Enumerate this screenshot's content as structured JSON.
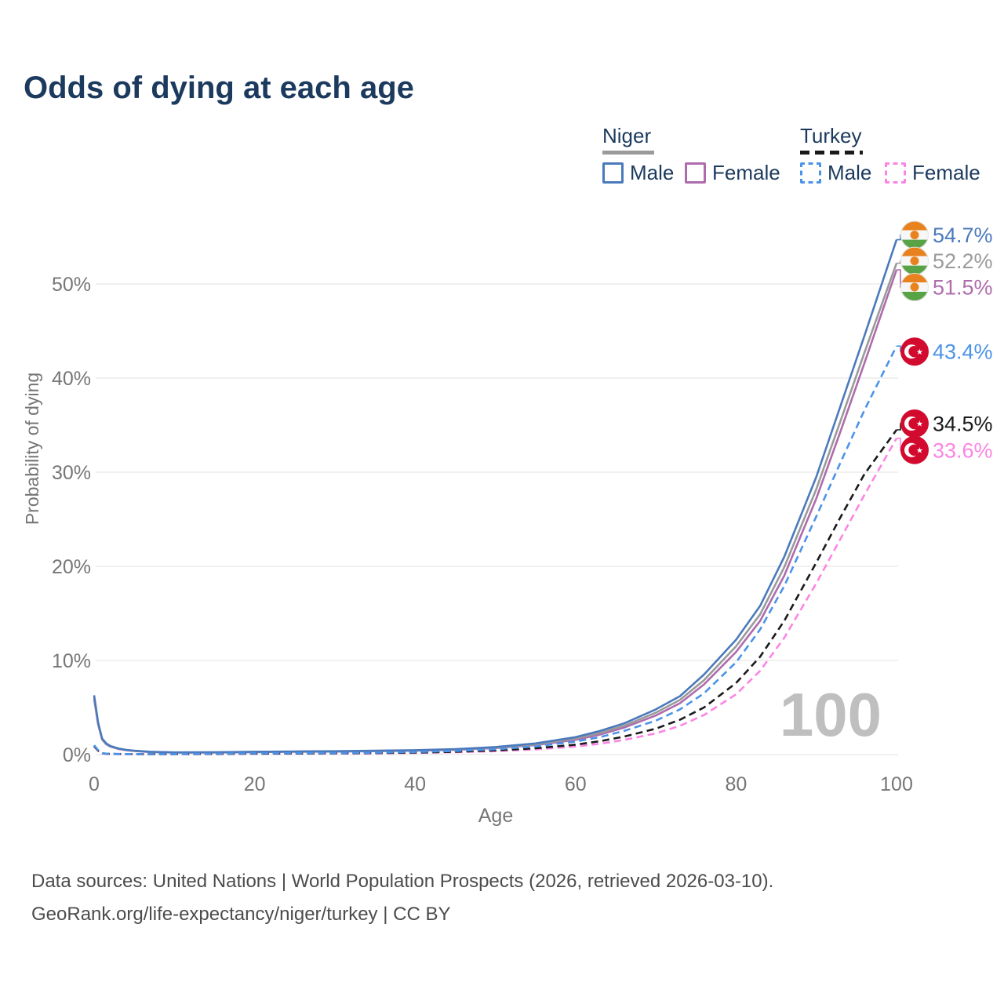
{
  "title": {
    "text": "Odds of dying at each age",
    "color": "#1c3a5e"
  },
  "legend": {
    "text_color": "#1c3a5e",
    "groups": [
      {
        "id": "niger",
        "label": "Niger",
        "swatch_color": "#9a9a9a",
        "swatch_style": "solid",
        "items": [
          {
            "id": "niger-male",
            "label": "Male",
            "color": "#4a7abc",
            "style": "solid"
          },
          {
            "id": "niger-female",
            "label": "Female",
            "color": "#af6cac",
            "style": "solid"
          }
        ]
      },
      {
        "id": "turkey",
        "label": "Turkey",
        "swatch_color": "#1a1a1a",
        "swatch_style": "dashed",
        "items": [
          {
            "id": "turkey-male",
            "label": "Male",
            "color": "#4b93e8",
            "style": "dashed"
          },
          {
            "id": "turkey-female",
            "label": "Female",
            "color": "#fc85e3",
            "style": "dashed"
          }
        ]
      }
    ]
  },
  "watermark": {
    "text": "100",
    "color": "#bfbfbf"
  },
  "footer": {
    "line1": "Data sources: United Nations | World Population Prospects (2026, retrieved 2026-03-10).",
    "line2": "GeoRank.org/life-expectancy/niger/turkey | CC BY",
    "color": "#4c4c4c"
  },
  "flags": {
    "niger": {
      "orange": "#e8821e",
      "white": "#f7f7f7",
      "green": "#57a345",
      "ring": "#e3e3e3"
    },
    "turkey": {
      "red": "#d20b2e",
      "white": "#ffffff"
    }
  },
  "chart_data": {
    "type": "line",
    "title": "Odds of dying at each age",
    "xlabel": "Age",
    "ylabel": "Probability of dying",
    "xlim": [
      0,
      100
    ],
    "ylim": [
      0,
      57
    ],
    "xticks": [
      0,
      20,
      40,
      60,
      80,
      100
    ],
    "yticks": [
      {
        "value": 0,
        "label": "0%"
      },
      {
        "value": 10,
        "label": "10%"
      },
      {
        "value": 20,
        "label": "20%"
      },
      {
        "value": 30,
        "label": "30%"
      },
      {
        "value": 40,
        "label": "40%"
      },
      {
        "value": 50,
        "label": "50%"
      }
    ],
    "grid": "horizontal",
    "legend_position": "top-right",
    "hover_age_indicator": "100",
    "ages": [
      0,
      0.5,
      1,
      1.5,
      2,
      3,
      4,
      5,
      7,
      10,
      15,
      20,
      25,
      30,
      35,
      40,
      45,
      50,
      55,
      60,
      63,
      66,
      70,
      73,
      76,
      80,
      83,
      86,
      90,
      93,
      96,
      100
    ],
    "series": [
      {
        "id": "niger-male",
        "name": "Niger — Male",
        "country": "Niger",
        "sex": "Male",
        "style": "solid",
        "color": "#4a7abc",
        "flag": "niger",
        "end_label": "54.7%",
        "end_value": 54.7,
        "values": [
          6.3,
          3.4,
          1.7,
          1.2,
          0.92,
          0.66,
          0.5,
          0.42,
          0.3,
          0.23,
          0.25,
          0.3,
          0.33,
          0.36,
          0.41,
          0.47,
          0.58,
          0.8,
          1.18,
          1.85,
          2.5,
          3.3,
          4.8,
          6.2,
          8.5,
          12.2,
          15.8,
          21.0,
          29.5,
          37.0,
          44.5,
          54.7
        ]
      },
      {
        "id": "niger-both",
        "name": "Niger — Both sexes",
        "country": "Niger",
        "sex": "Both",
        "style": "solid",
        "color": "#9a9a9a",
        "flag": "niger",
        "end_label": "52.2%",
        "end_value": 52.2,
        "values": [
          6.1,
          3.3,
          1.65,
          1.15,
          0.88,
          0.63,
          0.48,
          0.4,
          0.29,
          0.22,
          0.23,
          0.28,
          0.31,
          0.34,
          0.38,
          0.44,
          0.54,
          0.74,
          1.08,
          1.7,
          2.3,
          3.05,
          4.45,
          5.8,
          7.9,
          11.5,
          14.9,
          19.9,
          28.2,
          35.4,
          42.7,
          52.2
        ]
      },
      {
        "id": "niger-female",
        "name": "Niger — Female",
        "country": "Niger",
        "sex": "Female",
        "style": "solid",
        "color": "#af6cac",
        "flag": "niger",
        "end_label": "51.5%",
        "end_value": 51.5,
        "values": [
          5.9,
          3.2,
          1.6,
          1.1,
          0.85,
          0.6,
          0.46,
          0.38,
          0.27,
          0.21,
          0.22,
          0.26,
          0.29,
          0.32,
          0.36,
          0.41,
          0.51,
          0.69,
          1.0,
          1.57,
          2.12,
          2.85,
          4.15,
          5.45,
          7.45,
          10.9,
          14.2,
          19.0,
          27.2,
          34.3,
          41.6,
          51.5
        ]
      },
      {
        "id": "turkey-male",
        "name": "Turkey — Male",
        "country": "Turkey",
        "sex": "Male",
        "style": "dashed",
        "color": "#4b93e8",
        "flag": "turkey",
        "end_label": "43.4%",
        "end_value": 43.4,
        "values": [
          1.0,
          0.45,
          0.14,
          0.1,
          0.08,
          0.07,
          0.06,
          0.055,
          0.05,
          0.055,
          0.09,
          0.13,
          0.14,
          0.16,
          0.2,
          0.27,
          0.38,
          0.56,
          0.86,
          1.38,
          1.85,
          2.5,
          3.6,
          4.8,
          6.5,
          9.8,
          13.3,
          17.9,
          25.3,
          31.0,
          36.6,
          43.4
        ]
      },
      {
        "id": "turkey-both",
        "name": "Turkey — Both sexes",
        "country": "Turkey",
        "sex": "Both",
        "style": "dashed",
        "color": "#1a1a1a",
        "flag": "turkey",
        "end_label": "34.5%",
        "end_value": 34.5,
        "values": [
          0.92,
          0.42,
          0.13,
          0.09,
          0.075,
          0.062,
          0.055,
          0.05,
          0.045,
          0.05,
          0.07,
          0.1,
          0.11,
          0.13,
          0.16,
          0.21,
          0.3,
          0.44,
          0.67,
          1.05,
          1.42,
          1.9,
          2.75,
          3.7,
          5.0,
          7.6,
          10.4,
          14.2,
          20.4,
          25.2,
          29.8,
          34.5
        ]
      },
      {
        "id": "turkey-female",
        "name": "Turkey — Female",
        "country": "Turkey",
        "sex": "Female",
        "style": "dashed",
        "color": "#fc85e3",
        "flag": "turkey",
        "end_label": "33.6%",
        "end_value": 33.6,
        "values": [
          0.85,
          0.38,
          0.12,
          0.085,
          0.07,
          0.058,
          0.05,
          0.046,
          0.04,
          0.045,
          0.06,
          0.085,
          0.095,
          0.11,
          0.135,
          0.175,
          0.25,
          0.36,
          0.55,
          0.85,
          1.15,
          1.55,
          2.25,
          3.05,
          4.2,
          6.4,
          8.9,
          12.4,
          18.2,
          22.9,
          27.6,
          33.6
        ]
      }
    ]
  }
}
